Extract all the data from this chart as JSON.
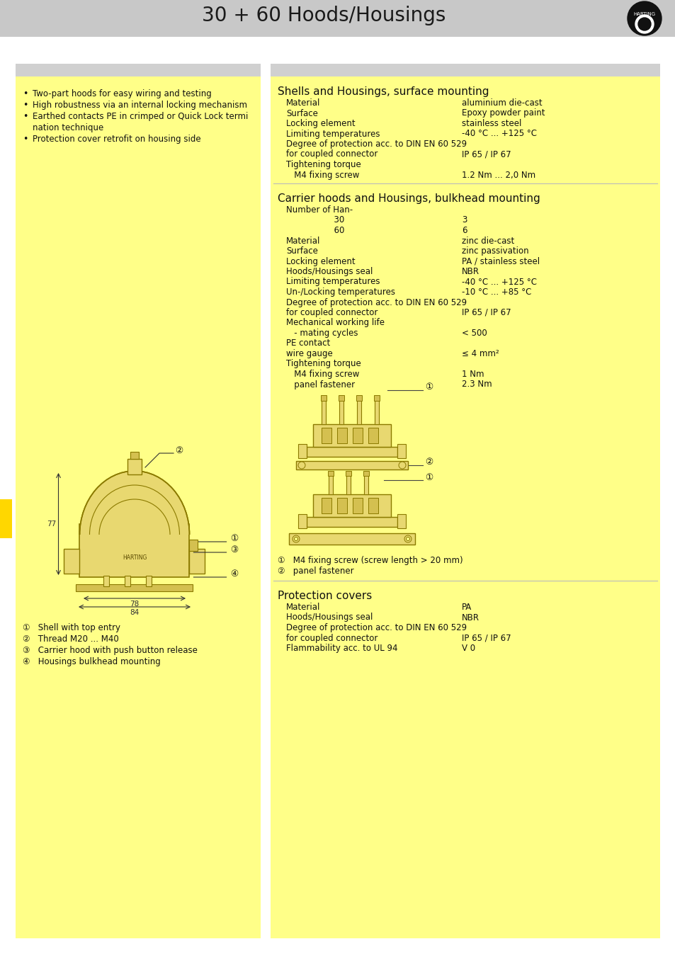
{
  "title": "30 + 60 Hoods/Housings",
  "title_bg": "#c8c8c8",
  "page_bg": "#ffffff",
  "gray_strip_bg": "#d0d0d0",
  "yellow_bg": "#FFFF88",
  "header_fontsize": 20,
  "body_fontsize": 8.5,
  "section_fontsize": 11,
  "left_bullets": [
    "Two-part hoods for easy wiring and testing",
    "High robustness via an internal locking mechanism",
    "Earthed contacts PE in crimped or Quick Lock termi",
    "nation technique",
    "Protection cover retrofit on housing side"
  ],
  "section1_title": "Shells and Housings, surface mounting",
  "section1_rows": [
    [
      "Material",
      "aluminium die-cast"
    ],
    [
      "Surface",
      "Epoxy powder paint"
    ],
    [
      "Locking element",
      "stainless steel"
    ],
    [
      "Limiting temperatures",
      "-40 °C ... +125 °C"
    ],
    [
      "Degree of protection acc. to DIN EN 60 529",
      ""
    ],
    [
      "for coupled connector",
      "IP 65 / IP 67"
    ],
    [
      "Tightening torque",
      ""
    ],
    [
      "   M4 fixing screw",
      "1.2 Nm ... 2,0 Nm"
    ]
  ],
  "section2_title": "Carrier hoods and Housings, bulkhead mounting",
  "section2_rows": [
    [
      "Number of Han-",
      ""
    ],
    [
      "                  30",
      "3"
    ],
    [
      "                  60",
      "6"
    ],
    [
      "Material",
      "zinc die-cast"
    ],
    [
      "Surface",
      "zinc passivation"
    ],
    [
      "Locking element",
      "PA / stainless steel"
    ],
    [
      "Hoods/Housings seal",
      "NBR"
    ],
    [
      "Limiting temperatures",
      "-40 °C ... +125 °C"
    ],
    [
      "Un-/Locking temperatures",
      "-10 °C ... +85 °C"
    ],
    [
      "Degree of protection acc. to DIN EN 60 529",
      ""
    ],
    [
      "for coupled connector",
      "IP 65 / IP 67"
    ],
    [
      "Mechanical working life",
      ""
    ],
    [
      "   - mating cycles",
      "< 500"
    ],
    [
      "PE contact",
      ""
    ],
    [
      "wire gauge",
      "≤ 4 mm²"
    ],
    [
      "Tightening torque",
      ""
    ],
    [
      "   M4 fixing screw",
      "1 Nm"
    ],
    [
      "   panel fastener",
      "2.3 Nm"
    ]
  ],
  "img_notes": [
    "①   M4 fixing screw (screw length > 20 mm)",
    "②   panel fastener"
  ],
  "section3_title": "Protection covers",
  "section3_rows": [
    [
      "Material",
      "PA"
    ],
    [
      "Hoods/Housings seal",
      "NBR"
    ],
    [
      "Degree of protection acc. to DIN EN 60 529",
      ""
    ],
    [
      "for coupled connector",
      "IP 65 / IP 67"
    ],
    [
      "Flammability acc. to UL 94",
      "V 0"
    ]
  ],
  "left_legend": [
    "①   Shell with top entry",
    "②   Thread M20 ... M40",
    "③   Carrier hood with push button release",
    "④   Housings bulkhead mounting"
  ],
  "draw_color": "#8B7A00",
  "draw_fill": "#E8D870",
  "draw_fill2": "#D4C050"
}
